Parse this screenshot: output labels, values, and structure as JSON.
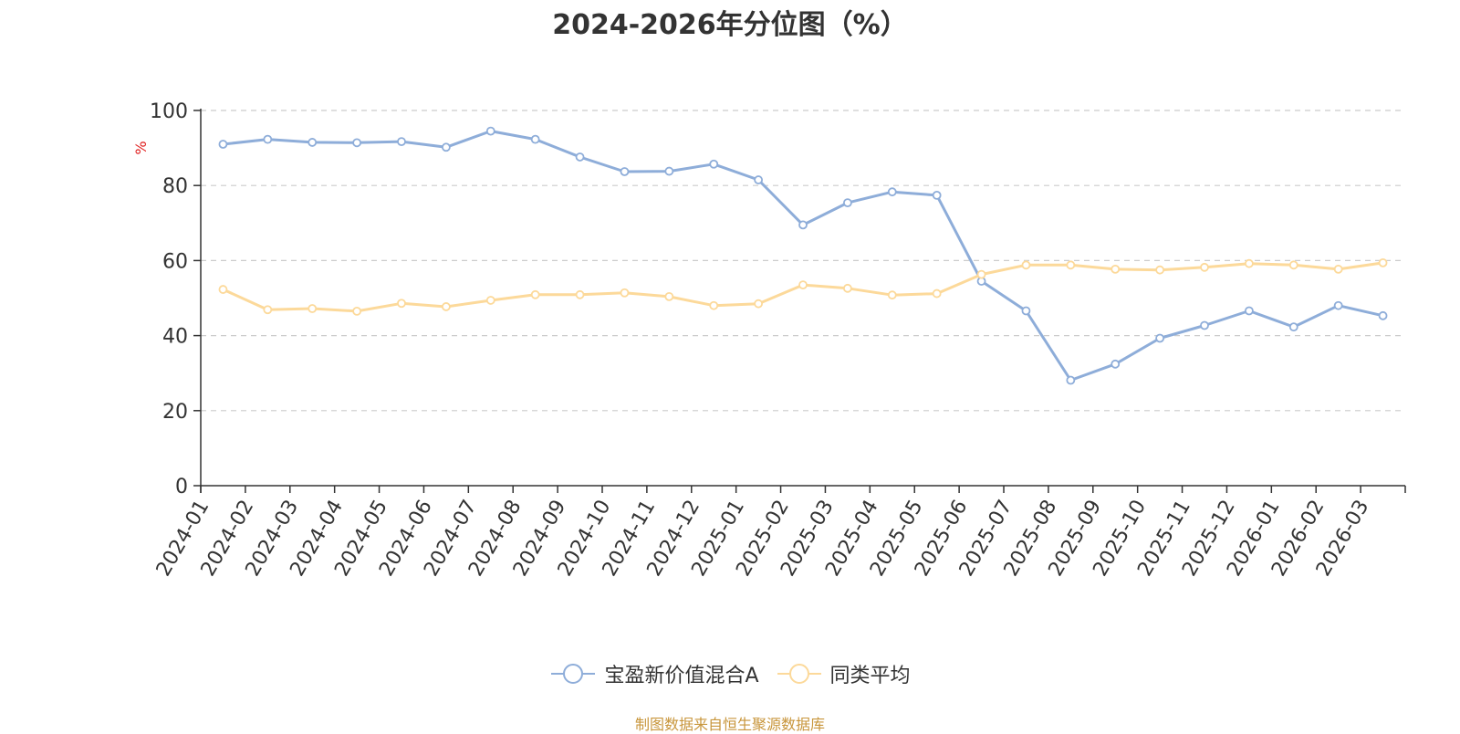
{
  "chart_data": {
    "type": "line",
    "title": "2024-2026年分位图（%）",
    "ylabel": "%",
    "ylim": [
      0,
      100
    ],
    "yticks": [
      0,
      20,
      40,
      60,
      80,
      100
    ],
    "grid": true,
    "legend_position": "bottom",
    "categories": [
      "2024-01",
      "2024-02",
      "2024-03",
      "2024-04",
      "2024-05",
      "2024-06",
      "2024-07",
      "2024-08",
      "2024-09",
      "2024-10",
      "2024-11",
      "2024-12",
      "2025-01",
      "2025-02",
      "2025-03",
      "2025-04",
      "2025-05",
      "2025-06",
      "2025-07",
      "2025-08",
      "2025-09",
      "2025-10",
      "2025-11",
      "2025-12",
      "2026-01",
      "2026-02",
      "2026-03"
    ],
    "series": [
      {
        "name": "宝盈新价值混合A",
        "color": "#8eadd9",
        "values": [
          91.0,
          92.3,
          91.5,
          91.4,
          91.7,
          90.2,
          94.5,
          92.3,
          87.6,
          83.7,
          83.8,
          85.7,
          81.5,
          69.5,
          75.4,
          78.3,
          77.4,
          54.5,
          46.6,
          28.1,
          32.4,
          39.3,
          42.7,
          46.6,
          42.3,
          48.0,
          45.3
        ]
      },
      {
        "name": "同类平均",
        "color": "#fcd99a",
        "values": [
          52.3,
          46.9,
          47.2,
          46.5,
          48.6,
          47.7,
          49.4,
          50.9,
          50.9,
          51.4,
          50.4,
          48.0,
          48.5,
          53.5,
          52.6,
          50.8,
          51.2,
          56.3,
          58.8,
          58.8,
          57.7,
          57.5,
          58.2,
          59.2,
          58.8,
          57.7,
          59.4
        ]
      }
    ]
  },
  "source_text": "制图数据来自恒生聚源数据库"
}
